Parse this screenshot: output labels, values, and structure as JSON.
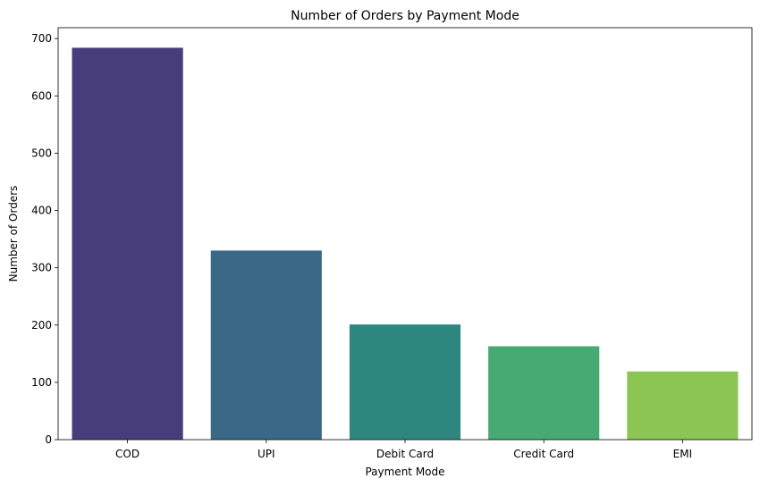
{
  "chart_data": {
    "type": "bar",
    "title": "Number of Orders by Payment Mode",
    "xlabel": "Payment Mode",
    "ylabel": "Number of Orders",
    "categories": [
      "COD",
      "UPI",
      "Debit Card",
      "Credit Card",
      "EMI"
    ],
    "values": [
      684,
      330,
      201,
      163,
      119
    ],
    "ylim": [
      0,
      719
    ],
    "yticks": [
      0,
      100,
      200,
      300,
      400,
      500,
      600,
      700
    ],
    "colors": [
      "#483D7B",
      "#3B6886",
      "#2D877F",
      "#47AA73",
      "#8CC553"
    ],
    "grid": false,
    "legend": "none"
  }
}
